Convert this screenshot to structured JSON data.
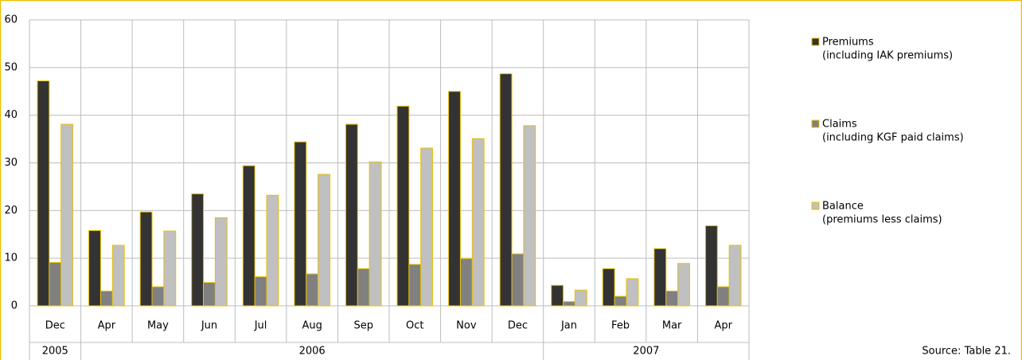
{
  "chart_data": {
    "type": "bar",
    "category_groups": [
      {
        "label": "2005",
        "categories": [
          "Dec"
        ]
      },
      {
        "label": "2006",
        "categories": [
          "Apr",
          "May",
          "Jun",
          "Jul",
          "Aug",
          "Sep",
          "Oct",
          "Nov",
          "Dec"
        ]
      },
      {
        "label": "2007",
        "categories": [
          "Jan",
          "Feb",
          "Mar",
          "Apr"
        ]
      }
    ],
    "series": [
      {
        "name": "Premiums",
        "description": "(including IAK premiums)",
        "color": "#333333",
        "values": [
          47.2,
          15.8,
          19.7,
          23.5,
          29.4,
          34.4,
          38.1,
          41.9,
          45.0,
          48.7,
          4.3,
          7.8,
          12.0,
          16.8
        ]
      },
      {
        "name": "Claims",
        "description": "(including KGF paid claims)",
        "color": "#808080",
        "values": [
          9.1,
          3.1,
          4.0,
          4.9,
          6.1,
          6.7,
          7.8,
          8.7,
          9.9,
          10.9,
          0.9,
          2.0,
          3.1,
          4.0
        ]
      },
      {
        "name": "Balance",
        "description": "(premiums less claims)",
        "color": "#c0c0c0",
        "values": [
          38.1,
          12.7,
          15.7,
          18.5,
          23.2,
          27.6,
          30.2,
          33.1,
          35.1,
          37.8,
          3.3,
          5.7,
          8.9,
          12.7
        ]
      }
    ],
    "bar_outline": "#e8c000",
    "ylim": [
      0,
      60
    ],
    "yticks": [
      0,
      10,
      20,
      30,
      40,
      50,
      60
    ],
    "grid": true,
    "legend": "right",
    "source": "Source: Table 21."
  }
}
